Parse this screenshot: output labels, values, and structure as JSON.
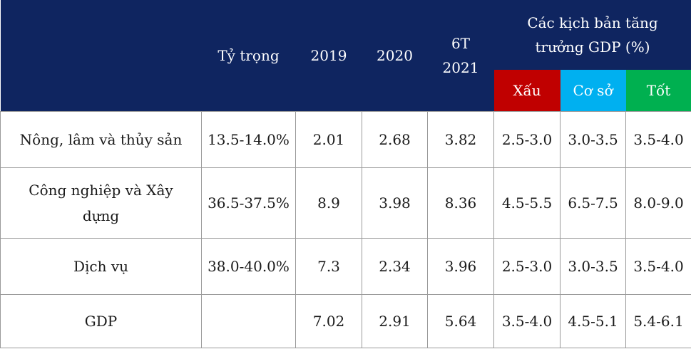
{
  "header": {
    "share": "Tỷ trọng",
    "y2019": "2019",
    "y2020": "2020",
    "h1_2021_line1": "6T",
    "h1_2021_line2": "2021",
    "scenarios_line1": "Các kịch bản tăng",
    "scenarios_line2": "trưởng GDP (%)",
    "bad": "Xấu",
    "base": "Cơ sở",
    "good": "Tốt"
  },
  "colors": {
    "header_bg": "#0f2560",
    "bad": "#c00000",
    "base": "#00b0f0",
    "good": "#00b050"
  },
  "rows": [
    {
      "sector": "Nông, lâm và thủy sản",
      "share": "13.5-14.0%",
      "y2019": "2.01",
      "y2020": "2.68",
      "h1_2021": "3.82",
      "bad": "2.5-3.0",
      "base": "3.0-3.5",
      "good": "3.5-4.0"
    },
    {
      "sector_line1": "Công nghiệp và Xây",
      "sector_line2": "dựng",
      "share": "36.5-37.5%",
      "y2019": "8.9",
      "y2020": "3.98",
      "h1_2021": "8.36",
      "bad": "4.5-5.5",
      "base": "6.5-7.5",
      "good": "8.0-9.0"
    },
    {
      "sector": "Dịch vụ",
      "share": "38.0-40.0%",
      "y2019": "7.3",
      "y2020": "2.34",
      "h1_2021": "3.96",
      "bad": "2.5-3.0",
      "base": "3.0-3.5",
      "good": "3.5-4.0"
    },
    {
      "sector": "GDP",
      "share": "",
      "y2019": "7.02",
      "y2020": "2.91",
      "h1_2021": "5.64",
      "bad": "3.5-4.0",
      "base": "4.5-5.1",
      "good": "5.4-6.1"
    }
  ]
}
